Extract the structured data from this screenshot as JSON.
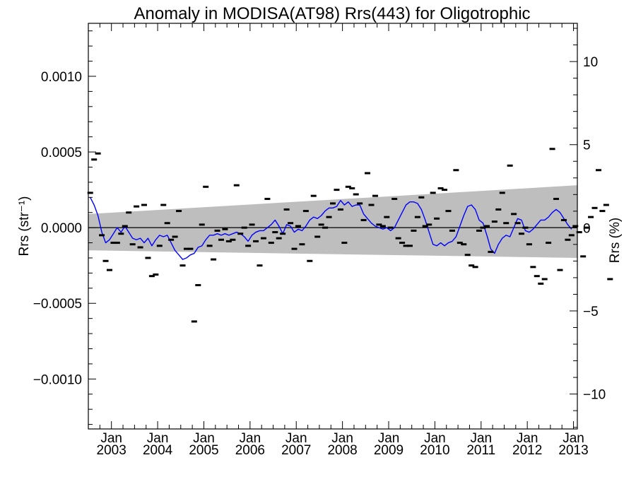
{
  "chart_data": {
    "type": "scatter",
    "title": "Anomaly in MODISA(AT98) Rrs(443) for Oligotrophic",
    "ylabel_left": "Rrs (str⁻¹)",
    "ylabel_right": "Rrs (%)",
    "x_range": [
      "2002-07-01",
      "2013-02-01"
    ],
    "ylim": [
      -0.00133,
      0.00135
    ],
    "y2lim": [
      -12.1,
      12.3
    ],
    "y_ticks": [
      {
        "value": 0.001,
        "label": "0.0010"
      },
      {
        "value": 0.0005,
        "label": "0.0005"
      },
      {
        "value": 0.0,
        "label": "0.0000"
      },
      {
        "value": -0.0005,
        "label": "−0.0005"
      },
      {
        "value": -0.001,
        "label": "−0.0010"
      }
    ],
    "y2_ticks": [
      {
        "value": 10,
        "label": "10"
      },
      {
        "value": 5,
        "label": "5"
      },
      {
        "value": 0,
        "label": "0"
      },
      {
        "value": -5,
        "label": "−5"
      },
      {
        "value": -10,
        "label": "−10"
      }
    ],
    "x_ticks": [
      {
        "date": "2003-01-01",
        "month": "Jan",
        "year": "2003"
      },
      {
        "date": "2004-01-01",
        "month": "Jan",
        "year": "2004"
      },
      {
        "date": "2005-01-01",
        "month": "Jan",
        "year": "2005"
      },
      {
        "date": "2006-01-01",
        "month": "Jan",
        "year": "2006"
      },
      {
        "date": "2007-01-01",
        "month": "Jan",
        "year": "2007"
      },
      {
        "date": "2008-01-01",
        "month": "Jan",
        "year": "2008"
      },
      {
        "date": "2009-01-01",
        "month": "Jan",
        "year": "2009"
      },
      {
        "date": "2010-01-01",
        "month": "Jan",
        "year": "2010"
      },
      {
        "date": "2011-01-01",
        "month": "Jan",
        "year": "2011"
      },
      {
        "date": "2012-01-01",
        "month": "Jan",
        "year": "2012"
      },
      {
        "date": "2013-01-01",
        "month": "Jan",
        "year": "2013"
      }
    ],
    "band": {
      "color": "#bebebe",
      "upper": [
        {
          "x": "2002-07-01",
          "y": 9e-05
        },
        {
          "x": "2013-02-01",
          "y": 0.00028
        }
      ],
      "lower": [
        {
          "x": "2002-07-01",
          "y": -0.00015
        },
        {
          "x": "2013-02-01",
          "y": -0.0002
        }
      ]
    },
    "zero_line": true,
    "line_color": "#0000ff",
    "marker_color": "#000000",
    "monthly_anomalies": {
      "start": "2002-07",
      "values": [
        0.00023,
        0.00045,
        0.00049,
        -5e-05,
        -0.00022,
        -0.00028,
        -0.0001,
        -0.0001,
        -4e-05,
        1e-05,
        0.0001,
        -0.00011,
        0.00014,
        -0.00013,
        0.00015,
        -0.0002,
        -0.00032,
        -0.00031,
        -0.00012,
        0.00015,
        3e-05,
        -8e-05,
        -6e-05,
        0.00011,
        -0.00025,
        -0.00014,
        -0.00014,
        -0.00062,
        -0.00038,
        2e-05,
        0.00027,
        -0.00012,
        -0.00021,
        -2e-05,
        -8e-05,
        -1e-05,
        -9e-05,
        -8e-05,
        0.00028,
        -4e-05,
        0.0,
        -0.00012,
        2e-05,
        -9e-05,
        -0.00025,
        -7e-05,
        0.00019,
        -0.0001,
        -3e-05,
        -7e-05,
        -4e-05,
        0.00012,
        3e-05,
        -0.00014,
        1e-05,
        -0.00011,
        0.00011,
        -0.00022,
        0.00021,
        -6e-05,
        2e-05,
        0.0,
        7e-05,
        0.00016,
        0.00025,
        0.00012,
        -0.0001,
        0.00027,
        0.00026,
        0.00022,
        0.00016,
        5e-05,
        0.00036,
        0.00015,
        0.00021,
        2e-05,
        1e-05,
        7e-05,
        0.0,
        0.00019,
        -7e-05,
        -0.0001,
        -0.00012,
        -0.00012,
        -2e-05,
        7e-05,
        0.0002,
        1e-05,
        2e-05,
        0.00023,
        6e-05,
        0.00026,
        0.00025,
        0.00011,
        -2e-05,
        0.00038,
        -0.0001,
        -0.00011,
        -0.00018,
        -0.00025,
        -0.00026,
        -2e-05,
        0.0,
        1e-05,
        -0.00016,
        4e-05,
        0.00012,
        0.00023,
        3e-05,
        0.00041,
        9e-05,
        3e-05,
        -4e-05,
        0.0,
        -0.00011,
        -0.00026,
        -0.00032,
        -0.00037,
        -0.00034,
        -0.0001,
        0.00052,
        0.00019,
        -0.00028,
        5e-05,
        -8e-05,
        -5e-05,
        1e-05,
        -3e-05,
        -0.00019,
        0.0,
        7e-05,
        0.00013,
        0.00038,
        0.00011,
        0.00015,
        -0.00034
      ]
    },
    "running_mean": {
      "start": "2002-07",
      "values": [
        0.0002,
        0.00015,
        8e-05,
        -3e-05,
        -0.0001,
        -8e-05,
        -4e-05,
        0.0,
        -3e-05,
        1e-05,
        -3e-05,
        -7e-05,
        -8e-05,
        -7e-05,
        -0.0001,
        -7e-05,
        -0.00012,
        -8e-05,
        -5e-05,
        -6e-05,
        -5e-05,
        -0.0001,
        -0.00015,
        -0.00018,
        -0.00021,
        -0.0002,
        -0.00018,
        -0.00017,
        -0.00013,
        -0.00012,
        -8e-05,
        -5e-05,
        -5e-05,
        -4e-05,
        -5e-05,
        -4e-05,
        -5e-05,
        -4e-05,
        -3e-05,
        -4e-05,
        -6e-05,
        -9e-05,
        -5e-05,
        -3e-05,
        -2e-05,
        -2e-05,
        0.0,
        2e-05,
        5e-05,
        1e-05,
        -4e-05,
        2e-05,
        1e-05,
        -3e-05,
        -1e-05,
        -2e-05,
        1e-05,
        5e-05,
        7e-05,
        6e-05,
        8e-05,
        0.00011,
        0.00013,
        0.00013,
        0.00014,
        0.00018,
        0.00015,
        0.00017,
        0.00014,
        0.00015,
        0.00015,
        9e-05,
        6e-05,
        3e-05,
        1e-05,
        0.0,
        -1e-05,
        0.0,
        -2e-05,
        0.0,
        5e-05,
        0.0001,
        0.00015,
        0.00017,
        0.00017,
        0.00016,
        0.00012,
        5e-05,
        -3e-05,
        -0.00011,
        -0.00012,
        -0.0001,
        -0.00012,
        -0.0001,
        -9e-05,
        -6e-05,
        1e-05,
        8e-05,
        0.00014,
        0.00015,
        0.00012,
        5e-05,
        3e-05,
        -5e-05,
        -0.00014,
        -0.00017,
        -0.00011,
        -7e-05,
        -5e-05,
        -6e-05,
        0.0,
        6e-05,
        5e-05,
        -2e-05,
        -3e-05,
        -1e-05,
        2e-05,
        5e-05,
        5e-05,
        7e-05,
        0.0001,
        0.00012,
        0.0001,
        6e-05,
        2e-05,
        -1e-05
      ]
    }
  }
}
